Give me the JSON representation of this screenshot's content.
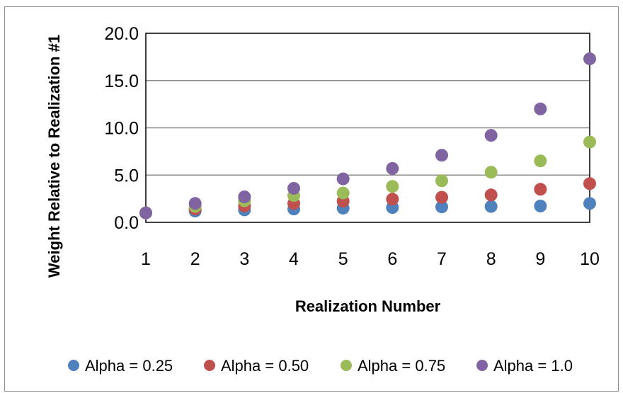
{
  "chart_data": {
    "type": "scatter",
    "x": [
      1,
      2,
      3,
      4,
      5,
      6,
      7,
      8,
      9,
      10
    ],
    "series": [
      {
        "name": "Alpha = 0.25",
        "color": "#4f81bd",
        "values": [
          1.0,
          1.19,
          1.32,
          1.41,
          1.5,
          1.57,
          1.63,
          1.68,
          1.73,
          2.0
        ]
      },
      {
        "name": "Alpha = 0.50",
        "color": "#c0504d",
        "values": [
          1.0,
          1.41,
          1.73,
          2.0,
          2.24,
          2.45,
          2.65,
          2.9,
          3.5,
          4.1
        ]
      },
      {
        "name": "Alpha = 0.75",
        "color": "#9bbb59",
        "values": [
          1.0,
          1.68,
          2.28,
          2.83,
          3.1,
          3.8,
          4.4,
          5.3,
          6.5,
          8.5
        ]
      },
      {
        "name": "Alpha = 1.0",
        "color": "#8064a2",
        "values": [
          1.0,
          2.0,
          2.7,
          3.6,
          4.6,
          5.7,
          7.1,
          9.2,
          12.0,
          17.3
        ]
      }
    ],
    "xticks": [
      "1",
      "2",
      "3",
      "4",
      "5",
      "6",
      "7",
      "8",
      "9",
      "10"
    ],
    "yticks": [
      "0.0",
      "5.0",
      "10.0",
      "15.0",
      "20.0"
    ],
    "ytick_values": [
      0,
      5,
      10,
      15,
      20
    ],
    "ylim": [
      0,
      20
    ],
    "xlabel": "Realization Number",
    "ylabel": "Weight Relative to Realization #1",
    "grid": "horizontal",
    "legend": "bottom"
  }
}
